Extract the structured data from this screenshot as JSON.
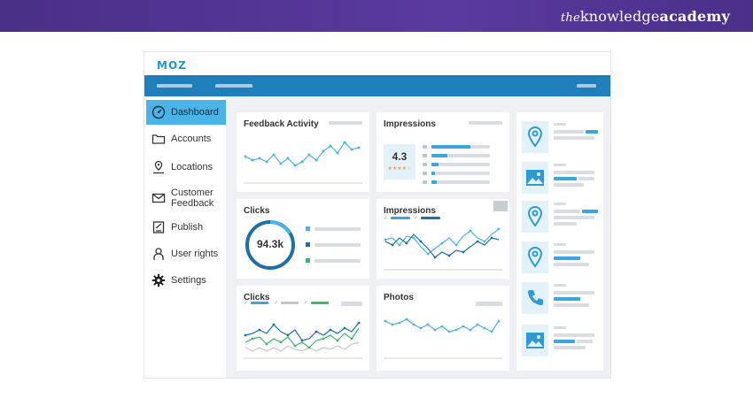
{
  "brand": {
    "prefix": "the",
    "name_regular": "knowledge",
    "name_bold": "academy"
  },
  "app": {
    "logo": "MOZ"
  },
  "sidebar": {
    "items": [
      {
        "label": "Dashboard",
        "icon": "dashboard-gauge-icon",
        "active": true
      },
      {
        "label": "Accounts",
        "icon": "folder-icon",
        "active": false
      },
      {
        "label": "Locations",
        "icon": "map-pin-icon",
        "active": false
      },
      {
        "label_line1": "Customer",
        "label_line2": "Feedback",
        "icon": "feedback-envelope-icon",
        "active": false
      },
      {
        "label": "Publish",
        "icon": "publish-icon",
        "active": false
      },
      {
        "label": "User rights",
        "icon": "user-icon",
        "active": false
      },
      {
        "label": "Settings",
        "icon": "gear-icon",
        "active": false
      }
    ]
  },
  "cards": {
    "feedback_activity": {
      "title": "Feedback Activity"
    },
    "impressions_rating": {
      "title": "Impressions",
      "rating": "4.3",
      "stars": "★★★★☆"
    },
    "clicks_donut": {
      "title": "Clicks",
      "value": "94.3k"
    },
    "impressions_chart": {
      "title": "Impressions"
    },
    "clicks_chart": {
      "title": "Clicks"
    },
    "photos": {
      "title": "Photos"
    }
  },
  "colors": {
    "accent": "#1f7fbb",
    "light_blue": "#4ab4e8",
    "dark_blue": "#1d6fa8",
    "green": "#3cb86a",
    "bg": "#eef0f3"
  }
}
